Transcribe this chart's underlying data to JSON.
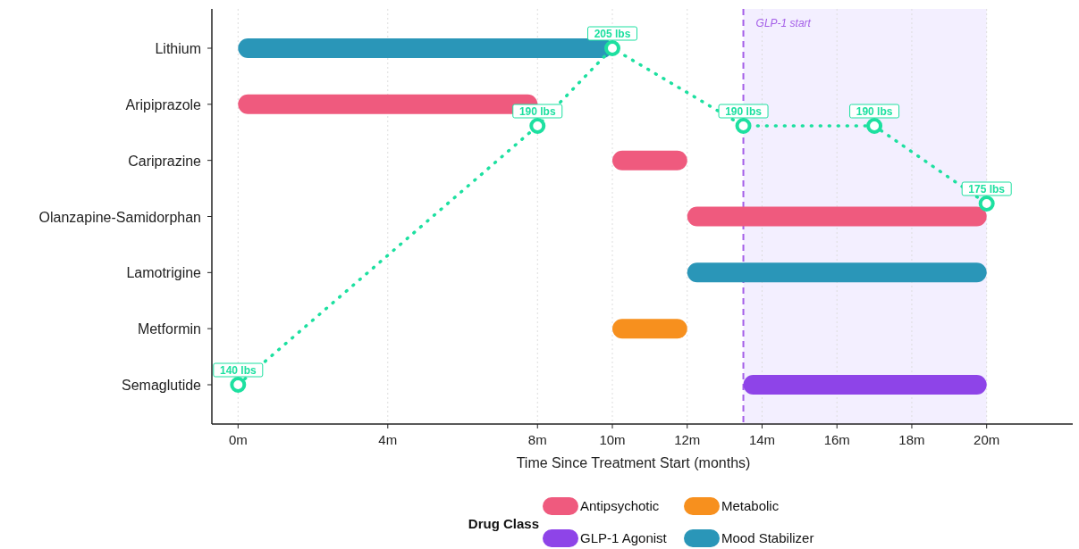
{
  "chart_data": [
    {
      "type": "bar",
      "orientation": "horizontal",
      "tick_labels": "y",
      "xlabel": "Time Since Treatment Start (months)",
      "legend_title": "Drug Class",
      "legend": "bottom",
      "grid": "x",
      "categories": [
        "Lithium",
        "Aripiprazole",
        "Cariprazine",
        "Olanzapine-Samidorphan",
        "Lamotrigine",
        "Metformin",
        "Semaglutide"
      ],
      "xlim": [
        -0.7,
        22.3
      ],
      "xticks": [
        {
          "value": 0,
          "label": null
        },
        {
          "value": 4,
          "label": null
        },
        {
          "value": 8,
          "label": null
        },
        {
          "value": 10,
          "label": null
        },
        {
          "value": 12,
          "label": null
        },
        {
          "value": 14,
          "label": null
        },
        {
          "value": 16,
          "label": null
        },
        {
          "value": 18,
          "label": null
        },
        {
          "value": 20,
          "label": null
        }
      ],
      "series": [
        {
          "name": "Antipsychotic",
          "color": "#ef5a7e",
          "base": [
            null,
            0,
            10,
            12,
            null,
            null,
            null
          ],
          "values": [
            null,
            8,
            2,
            8,
            null,
            null,
            null
          ]
        },
        {
          "name": "Metabolic",
          "color": "#f7901e",
          "base": [
            null,
            null,
            null,
            null,
            null,
            10,
            null
          ],
          "values": [
            null,
            null,
            null,
            null,
            null,
            2,
            null
          ]
        },
        {
          "name": "GLP-1 Agonist",
          "color": "#8e44e8",
          "base": [
            null,
            null,
            null,
            null,
            null,
            null,
            13.5
          ],
          "values": [
            null,
            null,
            null,
            null,
            null,
            null,
            6.5
          ]
        },
        {
          "name": "Mood Stabilizer",
          "color": "#2a96b8",
          "base": [
            10,
            null,
            null,
            null,
            12,
            null,
            null
          ],
          "values": [
            -10,
            null,
            null,
            null,
            8,
            null,
            null
          ]
        }
      ],
      "ref_lines": [
        {
          "axis": "x",
          "value": 13.5,
          "label": "GLP-1 start",
          "color": "#a45ee8",
          "line_style": "dashed"
        }
      ],
      "bands": [
        {
          "axis": "x",
          "from": 13.5,
          "to": 20,
          "color": "#f3efff"
        }
      ]
    },
    {
      "type": "line",
      "xlim": [
        -0.7,
        22.3
      ],
      "tick_labels": "x",
      "xticks": [
        {
          "value": 0,
          "label": "0m"
        },
        {
          "value": 4,
          "label": "4m"
        },
        {
          "value": 8,
          "label": "8m"
        },
        {
          "value": 10,
          "label": "10m"
        },
        {
          "value": 12,
          "label": "12m"
        },
        {
          "value": 14,
          "label": "14m"
        },
        {
          "value": 16,
          "label": "16m"
        },
        {
          "value": 18,
          "label": "18m"
        },
        {
          "value": 20,
          "label": "20m"
        }
      ],
      "marker": "circle",
      "line_style": "dotted",
      "x": [
        0,
        8,
        10,
        13.5,
        17,
        20
      ],
      "series": [
        {
          "color": "#1de0a0",
          "values": [
            140,
            190,
            205,
            190,
            190,
            175
          ],
          "value_labels": [
            "140 lbs",
            "190 lbs",
            "205 lbs",
            "190 lbs",
            "190 lbs",
            "175 lbs"
          ]
        }
      ]
    }
  ]
}
